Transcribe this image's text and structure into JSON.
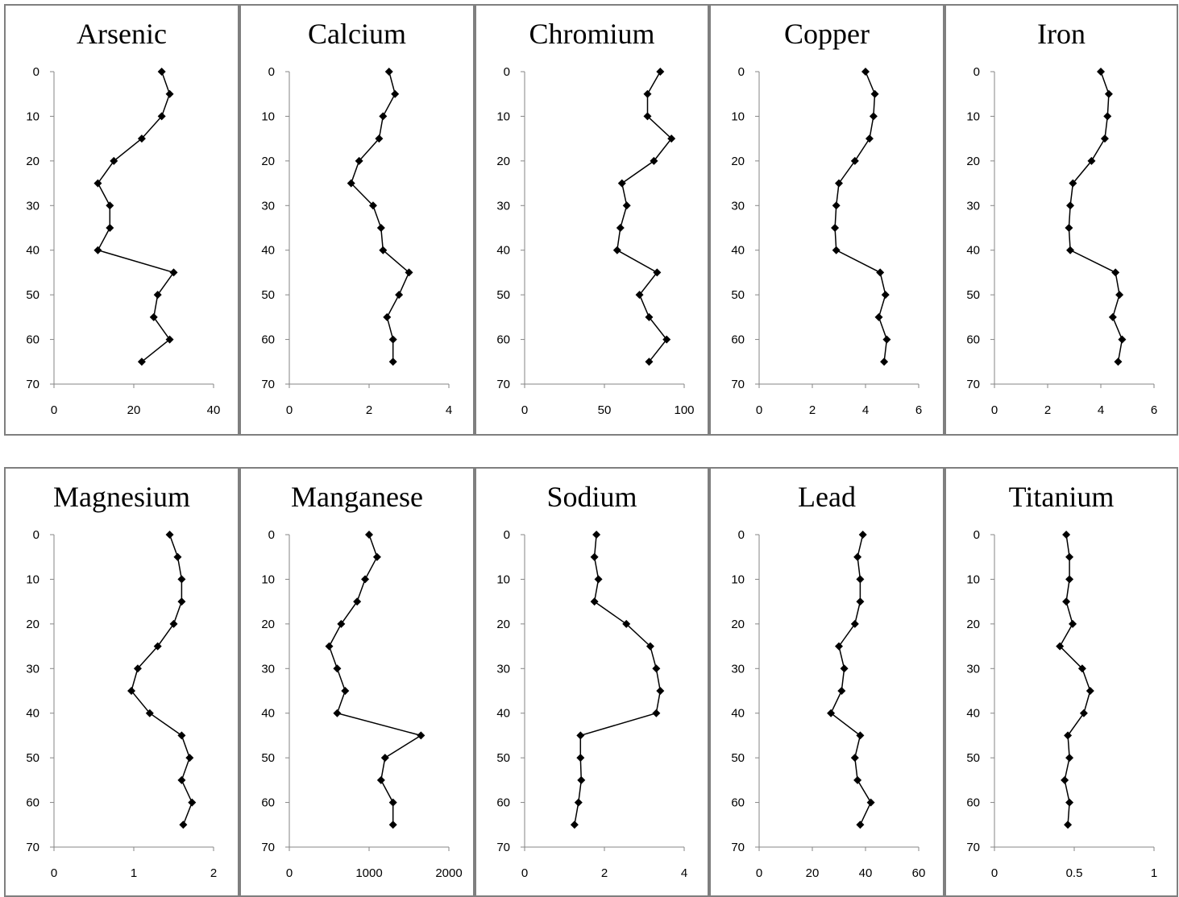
{
  "chart_data": [
    {
      "type": "line",
      "title": "Arsenic",
      "xlim": [
        0,
        40
      ],
      "xticks": [
        "0",
        "20",
        "40"
      ],
      "ylim": [
        0,
        70
      ],
      "yticks": [
        "0",
        "10",
        "20",
        "30",
        "40",
        "50",
        "60",
        "70"
      ],
      "y": [
        0,
        5,
        10,
        15,
        20,
        25,
        30,
        35,
        40,
        45,
        50,
        55,
        60,
        65
      ],
      "x": [
        27,
        29,
        27,
        22,
        15,
        11,
        14,
        14,
        11,
        30,
        26,
        25,
        29,
        22
      ]
    },
    {
      "type": "line",
      "title": "Calcium",
      "xlim": [
        0,
        4
      ],
      "xticks": [
        "0",
        "2",
        "4"
      ],
      "ylim": [
        0,
        70
      ],
      "yticks": [
        "0",
        "10",
        "20",
        "30",
        "40",
        "50",
        "60",
        "70"
      ],
      "y": [
        0,
        5,
        10,
        15,
        20,
        25,
        30,
        35,
        40,
        45,
        50,
        55,
        60,
        65
      ],
      "x": [
        2.5,
        2.65,
        2.35,
        2.25,
        1.75,
        1.55,
        2.1,
        2.3,
        2.35,
        3.0,
        2.75,
        2.45,
        2.6,
        2.6
      ]
    },
    {
      "type": "line",
      "title": "Chromium",
      "xlim": [
        0,
        100
      ],
      "xticks": [
        "0",
        "50",
        "100"
      ],
      "ylim": [
        0,
        70
      ],
      "yticks": [
        "0",
        "10",
        "20",
        "30",
        "40",
        "50",
        "60",
        "70"
      ],
      "y": [
        0,
        5,
        10,
        15,
        20,
        25,
        30,
        35,
        40,
        45,
        50,
        55,
        60,
        65
      ],
      "x": [
        85,
        77,
        77,
        92,
        81,
        61,
        64,
        60,
        58,
        83,
        72,
        78,
        89,
        78
      ]
    },
    {
      "type": "line",
      "title": "Copper",
      "xlim": [
        0,
        6
      ],
      "xticks": [
        "0",
        "2",
        "4",
        "6"
      ],
      "ylim": [
        0,
        70
      ],
      "yticks": [
        "0",
        "10",
        "20",
        "30",
        "40",
        "50",
        "60",
        "70"
      ],
      "y": [
        0,
        5,
        10,
        15,
        20,
        25,
        30,
        35,
        40,
        45,
        50,
        55,
        60,
        65
      ],
      "x": [
        4.0,
        4.35,
        4.3,
        4.15,
        3.6,
        3.0,
        2.9,
        2.85,
        2.9,
        4.55,
        4.75,
        4.5,
        4.8,
        4.7
      ]
    },
    {
      "type": "line",
      "title": "Iron",
      "xlim": [
        0,
        6
      ],
      "xticks": [
        "0",
        "2",
        "4",
        "6"
      ],
      "ylim": [
        0,
        70
      ],
      "yticks": [
        "0",
        "10",
        "20",
        "30",
        "40",
        "50",
        "60",
        "70"
      ],
      "y": [
        0,
        5,
        10,
        15,
        20,
        25,
        30,
        35,
        40,
        45,
        50,
        55,
        60,
        65
      ],
      "x": [
        4.0,
        4.3,
        4.25,
        4.15,
        3.65,
        2.95,
        2.85,
        2.8,
        2.85,
        4.55,
        4.7,
        4.45,
        4.8,
        4.65
      ]
    },
    {
      "type": "line",
      "title": "Magnesium",
      "xlim": [
        0,
        2
      ],
      "xticks": [
        "0",
        "1",
        "2"
      ],
      "ylim": [
        0,
        70
      ],
      "yticks": [
        "0",
        "10",
        "20",
        "30",
        "40",
        "50",
        "60",
        "70"
      ],
      "y": [
        0,
        5,
        10,
        15,
        20,
        25,
        30,
        35,
        40,
        45,
        50,
        55,
        60,
        65
      ],
      "x": [
        1.45,
        1.55,
        1.6,
        1.6,
        1.5,
        1.3,
        1.05,
        0.97,
        1.2,
        1.6,
        1.7,
        1.6,
        1.73,
        1.62
      ]
    },
    {
      "type": "line",
      "title": "Manganese",
      "xlim": [
        0,
        2000
      ],
      "xticks": [
        "0",
        "1000",
        "2000"
      ],
      "ylim": [
        0,
        70
      ],
      "yticks": [
        "0",
        "10",
        "20",
        "30",
        "40",
        "50",
        "60",
        "70"
      ],
      "y": [
        0,
        5,
        10,
        15,
        20,
        25,
        30,
        35,
        40,
        45,
        50,
        55,
        60,
        65
      ],
      "x": [
        1000,
        1100,
        950,
        850,
        650,
        500,
        600,
        700,
        600,
        1650,
        1200,
        1150,
        1300,
        1300
      ]
    },
    {
      "type": "line",
      "title": "Sodium",
      "xlim": [
        0,
        4
      ],
      "xticks": [
        "0",
        "2",
        "4"
      ],
      "ylim": [
        0,
        70
      ],
      "yticks": [
        "0",
        "10",
        "20",
        "30",
        "40",
        "50",
        "60",
        "70"
      ],
      "y": [
        0,
        5,
        10,
        15,
        20,
        25,
        30,
        35,
        40,
        45,
        50,
        55,
        60,
        65
      ],
      "x": [
        1.8,
        1.75,
        1.85,
        1.75,
        2.55,
        3.15,
        3.3,
        3.4,
        3.3,
        1.4,
        1.4,
        1.42,
        1.35,
        1.25
      ]
    },
    {
      "type": "line",
      "title": "Lead",
      "xlim": [
        0,
        60
      ],
      "xticks": [
        "0",
        "20",
        "40",
        "60"
      ],
      "ylim": [
        0,
        70
      ],
      "yticks": [
        "0",
        "10",
        "20",
        "30",
        "40",
        "50",
        "60",
        "70"
      ],
      "y": [
        0,
        5,
        10,
        15,
        20,
        25,
        30,
        35,
        40,
        45,
        50,
        55,
        60,
        65
      ],
      "x": [
        39,
        37,
        38,
        38,
        36,
        30,
        32,
        31,
        27,
        38,
        36,
        37,
        42,
        38
      ]
    },
    {
      "type": "line",
      "title": "Titanium",
      "xlim": [
        0,
        1
      ],
      "xticks": [
        "0",
        "0.5",
        "1"
      ],
      "ylim": [
        0,
        70
      ],
      "yticks": [
        "0",
        "10",
        "20",
        "30",
        "40",
        "50",
        "60",
        "70"
      ],
      "y": [
        0,
        5,
        10,
        15,
        20,
        25,
        30,
        35,
        40,
        45,
        50,
        55,
        60,
        65
      ],
      "x": [
        0.45,
        0.47,
        0.47,
        0.45,
        0.49,
        0.41,
        0.55,
        0.6,
        0.56,
        0.46,
        0.47,
        0.44,
        0.47,
        0.46
      ]
    }
  ]
}
